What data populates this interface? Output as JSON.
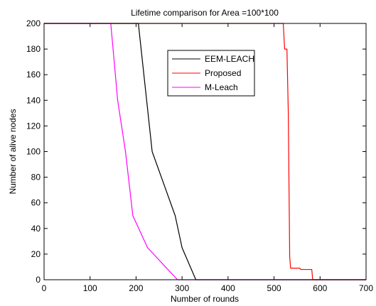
{
  "chart_data": {
    "type": "line",
    "title": "Lifetime comparison for Area =100*100",
    "xlabel": "Number of rounds",
    "ylabel": "Number of alive nodes",
    "xlim": [
      0,
      700
    ],
    "ylim": [
      0,
      200
    ],
    "xticks": [
      "0",
      "100",
      "200",
      "300",
      "400",
      "500",
      "600",
      "700"
    ],
    "yticks": [
      "0",
      "20",
      "40",
      "60",
      "80",
      "100",
      "120",
      "140",
      "160",
      "180",
      "200"
    ],
    "grid": false,
    "legend_position": "top-middle",
    "series": [
      {
        "name": "EEM-LEACH",
        "color": "#000000",
        "points": [
          [
            0,
            200
          ],
          [
            205,
            200
          ],
          [
            235,
            100
          ],
          [
            285,
            50
          ],
          [
            300,
            25
          ],
          [
            330,
            0
          ],
          [
            700,
            0
          ]
        ]
      },
      {
        "name": "Proposed",
        "color": "#ff0000",
        "points": [
          [
            0,
            200
          ],
          [
            520,
            200
          ],
          [
            523,
            180
          ],
          [
            528,
            180
          ],
          [
            531,
            130
          ],
          [
            534,
            18
          ],
          [
            536,
            9
          ],
          [
            556,
            9
          ],
          [
            558,
            8
          ],
          [
            582,
            8
          ],
          [
            584,
            0
          ],
          [
            700,
            0
          ]
        ]
      },
      {
        "name": "M-Leach",
        "color": "#ff00ff",
        "points": [
          [
            0,
            200
          ],
          [
            145,
            200
          ],
          [
            160,
            140
          ],
          [
            177,
            100
          ],
          [
            193,
            50
          ],
          [
            225,
            25
          ],
          [
            290,
            0
          ],
          [
            700,
            0
          ]
        ]
      }
    ]
  }
}
